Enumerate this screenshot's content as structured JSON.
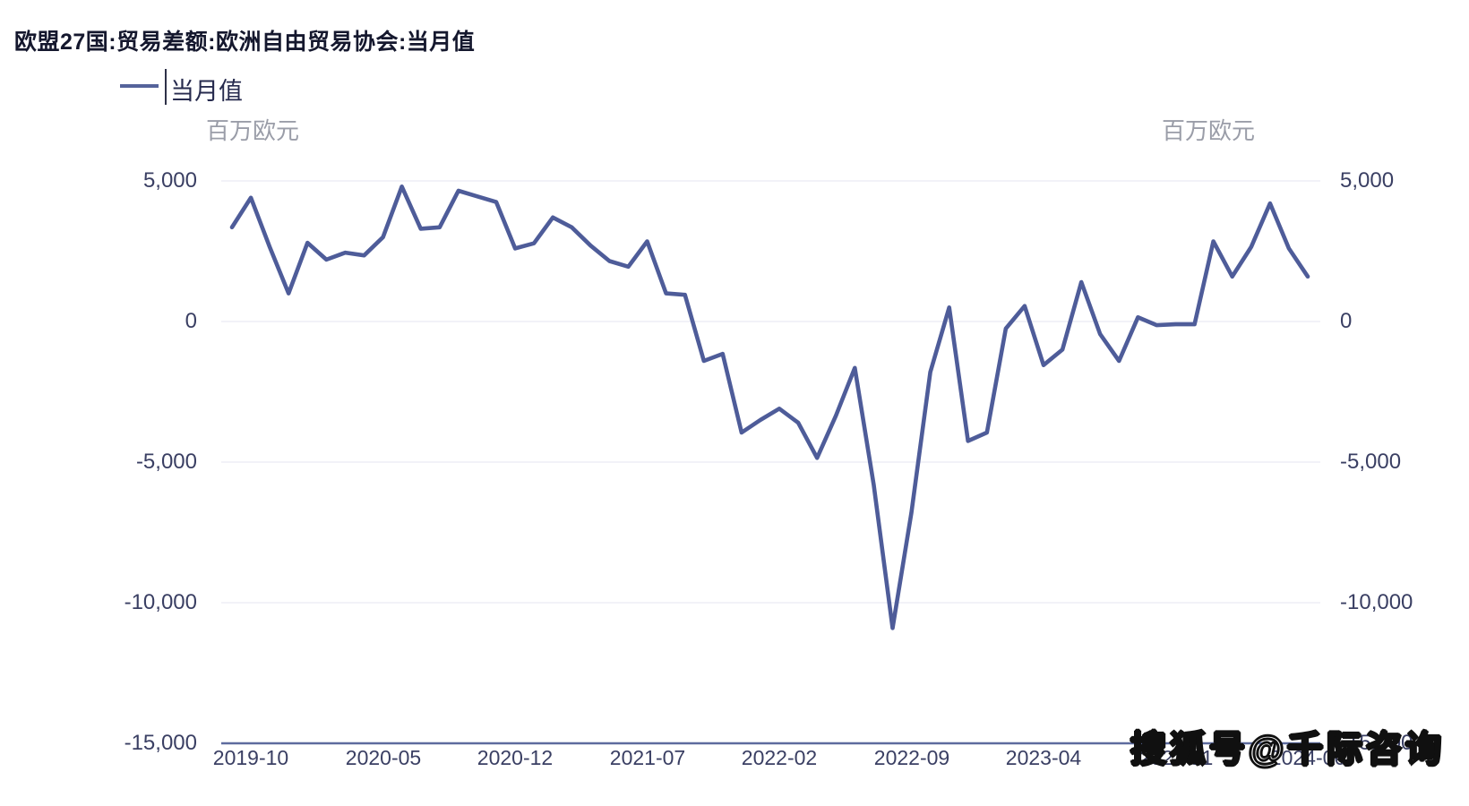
{
  "title": "欧盟27国:贸易差额:欧洲自由贸易协会:当月值",
  "legend": {
    "label": "当月值"
  },
  "unit_left": "百万欧元",
  "unit_right": "百万欧元",
  "watermark": "搜狐号@千际咨询",
  "colors": {
    "series": "#4e5c99",
    "axis_line": "#5d6b9e",
    "gridline": "#e9eaf4",
    "title_text": "#15182e",
    "tick_text": "#3a3f63",
    "unit_text": "#9a9da8"
  },
  "chart_data": {
    "type": "line",
    "title": "欧盟27国:贸易差额:欧洲自由贸易协会:当月值",
    "series_name": "当月值",
    "ylabel": "百万欧元",
    "ylim": [
      -15000,
      5000
    ],
    "grid": "horizontal",
    "legend_position": "top-left",
    "y_ticks": [
      5000,
      0,
      -5000,
      -10000,
      -15000
    ],
    "y_tick_labels": [
      "5,000",
      "0",
      "-5,000",
      "-10,000",
      "-15,000"
    ],
    "x_tick_labels": [
      "2019-10",
      "2020-05",
      "2020-12",
      "2021-07",
      "2022-02",
      "2022-09",
      "2023-04",
      "2023-11",
      "2024-06"
    ],
    "x": [
      "2019-09",
      "2019-10",
      "2019-11",
      "2019-12",
      "2020-01",
      "2020-02",
      "2020-03",
      "2020-04",
      "2020-05",
      "2020-06",
      "2020-07",
      "2020-08",
      "2020-09",
      "2020-10",
      "2020-11",
      "2020-12",
      "2021-01",
      "2021-02",
      "2021-03",
      "2021-04",
      "2021-05",
      "2021-06",
      "2021-07",
      "2021-08",
      "2021-09",
      "2021-10",
      "2021-11",
      "2021-12",
      "2022-01",
      "2022-02",
      "2022-03",
      "2022-04",
      "2022-05",
      "2022-06",
      "2022-07",
      "2022-08",
      "2022-09",
      "2022-10",
      "2022-11",
      "2022-12",
      "2023-01",
      "2023-02",
      "2023-03",
      "2023-04",
      "2023-05",
      "2023-06",
      "2023-07",
      "2023-08",
      "2023-09",
      "2023-10",
      "2023-11",
      "2023-12",
      "2024-01",
      "2024-02",
      "2024-03",
      "2024-04",
      "2024-05",
      "2024-06"
    ],
    "values": [
      3350,
      4400,
      2650,
      1000,
      2800,
      2200,
      2450,
      2350,
      3000,
      4800,
      3300,
      3350,
      4650,
      4450,
      4250,
      2600,
      2780,
      3700,
      3350,
      2700,
      2150,
      1950,
      2850,
      1000,
      950,
      -1400,
      -1150,
      -3950,
      -3500,
      -3100,
      -3600,
      -4850,
      -3350,
      -1650,
      -5800,
      -10900,
      -6800,
      -1800,
      500,
      -4250,
      -3950,
      -250,
      550,
      -1550,
      -1000,
      1400,
      -450,
      -1400,
      150,
      -130,
      -100,
      -100,
      2850,
      1600,
      2650,
      4200,
      2600,
      1600
    ]
  }
}
